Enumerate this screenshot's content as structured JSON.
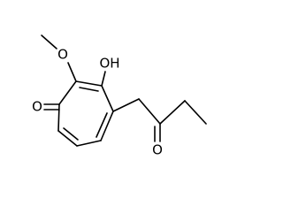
{
  "atoms": [
    {
      "label": "O"
    },
    {
      "label": "OH"
    },
    {
      "label": "O"
    },
    {
      "label": "O"
    }
  ]
}
